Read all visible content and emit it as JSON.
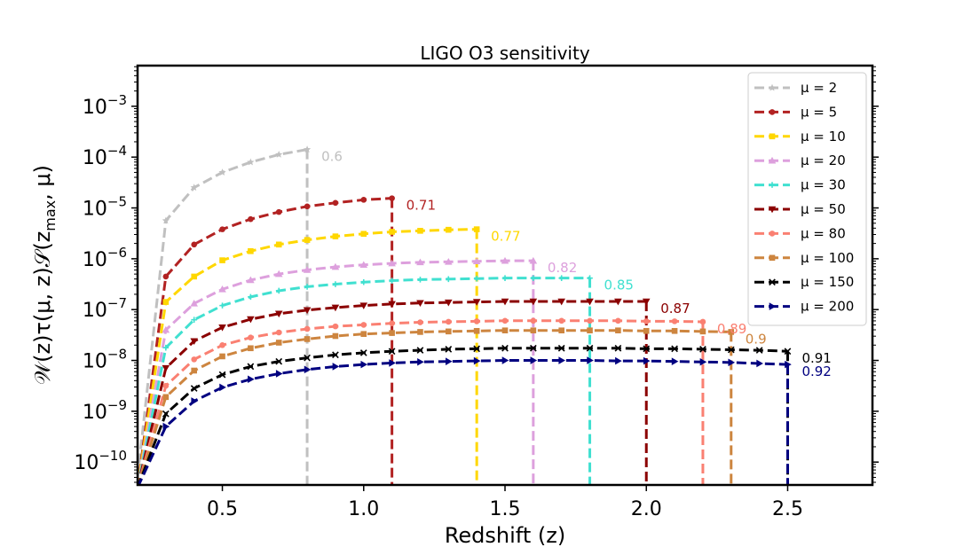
{
  "chart_data": {
    "type": "line",
    "title": "LIGO O3 sensitivity",
    "xlabel": "Redshift (z)",
    "ylabel_parts": {
      "a": "𝒲(z)τ(μ, z)𝒮(z",
      "b": "max",
      "c": ", μ)"
    },
    "xlim": [
      0.2,
      2.8
    ],
    "ylim": [
      -10.45,
      -2.2
    ],
    "yscale": "log",
    "x_ticks": [
      {
        "v": 0.5,
        "label": "0.5"
      },
      {
        "v": 1.0,
        "label": "1.0"
      },
      {
        "v": 1.5,
        "label": "1.5"
      },
      {
        "v": 2.0,
        "label": "2.0"
      },
      {
        "v": 2.5,
        "label": "2.5"
      }
    ],
    "y_ticks": [
      {
        "v": -10,
        "base": "10",
        "exp": "−10"
      },
      {
        "v": -9,
        "base": "10",
        "exp": "−9"
      },
      {
        "v": -8,
        "base": "10",
        "exp": "−8"
      },
      {
        "v": -7,
        "base": "10",
        "exp": "−7"
      },
      {
        "v": -6,
        "base": "10",
        "exp": "−6"
      },
      {
        "v": -5,
        "base": "10",
        "exp": "−5"
      },
      {
        "v": -4,
        "base": "10",
        "exp": "−4"
      },
      {
        "v": -3,
        "base": "10",
        "exp": "−3"
      }
    ],
    "legend_position": "top-right",
    "series": [
      {
        "name": "μ = 2",
        "mu": "2",
        "color": "#c0c0c0",
        "marker": "star",
        "zmax": 0.8,
        "end_label": "0.6",
        "x": [
          0.2,
          0.3,
          0.4,
          0.5,
          0.6,
          0.7,
          0.8
        ],
        "log_y": [
          -10.3,
          -5.25,
          -4.6,
          -4.3,
          -4.1,
          -3.95,
          -3.85
        ]
      },
      {
        "name": "μ = 5",
        "mu": "5",
        "color": "#b22222",
        "marker": "circle",
        "zmax": 1.1,
        "end_label": "0.71",
        "x": [
          0.2,
          0.3,
          0.4,
          0.5,
          0.6,
          0.7,
          0.8,
          0.9,
          1.0,
          1.1
        ],
        "log_y": [
          -10.5,
          -6.35,
          -5.72,
          -5.42,
          -5.22,
          -5.08,
          -4.97,
          -4.9,
          -4.84,
          -4.81
        ]
      },
      {
        "name": "μ = 10",
        "mu": "10",
        "color": "#ffd700",
        "marker": "square",
        "zmax": 1.4,
        "end_label": "0.77",
        "x": [
          0.2,
          0.3,
          0.4,
          0.5,
          0.6,
          0.7,
          0.8,
          0.9,
          1.0,
          1.1,
          1.2,
          1.3,
          1.4
        ],
        "log_y": [
          -10.5,
          -6.85,
          -6.35,
          -6.03,
          -5.85,
          -5.72,
          -5.63,
          -5.56,
          -5.51,
          -5.47,
          -5.45,
          -5.43,
          -5.42
        ]
      },
      {
        "name": "μ = 20",
        "mu": "20",
        "color": "#dda0dd",
        "marker": "triangle-up",
        "zmax": 1.6,
        "end_label": "0.82",
        "x": [
          0.2,
          0.3,
          0.4,
          0.5,
          0.6,
          0.7,
          0.8,
          0.9,
          1.0,
          1.1,
          1.2,
          1.3,
          1.4,
          1.5,
          1.6
        ],
        "log_y": [
          -10.5,
          -7.4,
          -6.88,
          -6.6,
          -6.42,
          -6.3,
          -6.22,
          -6.16,
          -6.12,
          -6.09,
          -6.07,
          -6.06,
          -6.05,
          -6.04,
          -6.04
        ]
      },
      {
        "name": "μ = 30",
        "mu": "30",
        "color": "#40e0d0",
        "marker": "plus",
        "zmax": 1.8,
        "end_label": "0.85",
        "x": [
          0.2,
          0.3,
          0.4,
          0.5,
          0.6,
          0.7,
          0.8,
          0.9,
          1.0,
          1.1,
          1.2,
          1.3,
          1.4,
          1.5,
          1.6,
          1.7,
          1.8
        ],
        "log_y": [
          -10.5,
          -7.75,
          -7.2,
          -6.92,
          -6.75,
          -6.63,
          -6.55,
          -6.5,
          -6.46,
          -6.43,
          -6.41,
          -6.4,
          -6.39,
          -6.38,
          -6.38,
          -6.38,
          -6.38
        ]
      },
      {
        "name": "μ = 50",
        "mu": "50",
        "color": "#8b0000",
        "marker": "triangle-down",
        "zmax": 2.0,
        "end_label": "0.87",
        "x": [
          0.2,
          0.3,
          0.4,
          0.5,
          0.6,
          0.7,
          0.8,
          0.9,
          1.0,
          1.1,
          1.2,
          1.3,
          1.4,
          1.5,
          1.6,
          1.7,
          1.8,
          1.9,
          2.0
        ],
        "log_y": [
          -10.5,
          -8.15,
          -7.62,
          -7.35,
          -7.19,
          -7.08,
          -7.01,
          -6.96,
          -6.92,
          -6.89,
          -6.87,
          -6.86,
          -6.85,
          -6.84,
          -6.84,
          -6.84,
          -6.84,
          -6.84,
          -6.84
        ]
      },
      {
        "name": "μ = 80",
        "mu": "80",
        "color": "#fa8072",
        "marker": "circle",
        "zmax": 2.2,
        "end_label": "0.89",
        "x": [
          0.2,
          0.3,
          0.4,
          0.5,
          0.6,
          0.7,
          0.8,
          0.9,
          1.0,
          1.1,
          1.2,
          1.3,
          1.4,
          1.5,
          1.6,
          1.7,
          1.8,
          1.9,
          2.0,
          2.1,
          2.2
        ],
        "log_y": [
          -10.5,
          -8.5,
          -7.98,
          -7.7,
          -7.55,
          -7.45,
          -7.38,
          -7.33,
          -7.3,
          -7.27,
          -7.25,
          -7.24,
          -7.23,
          -7.22,
          -7.22,
          -7.22,
          -7.22,
          -7.22,
          -7.23,
          -7.23,
          -7.24
        ]
      },
      {
        "name": "μ = 100",
        "mu": "100",
        "color": "#cd853f",
        "marker": "square",
        "zmax": 2.3,
        "end_label": "0.9",
        "x": [
          0.2,
          0.3,
          0.4,
          0.5,
          0.6,
          0.7,
          0.8,
          0.9,
          1.0,
          1.1,
          1.2,
          1.3,
          1.4,
          1.5,
          1.6,
          1.7,
          1.8,
          1.9,
          2.0,
          2.1,
          2.2,
          2.3
        ],
        "log_y": [
          -10.5,
          -8.72,
          -8.2,
          -7.92,
          -7.76,
          -7.65,
          -7.58,
          -7.52,
          -7.48,
          -7.46,
          -7.44,
          -7.43,
          -7.42,
          -7.41,
          -7.41,
          -7.41,
          -7.41,
          -7.41,
          -7.42,
          -7.42,
          -7.43,
          -7.44
        ]
      },
      {
        "name": "μ = 150",
        "mu": "150",
        "color": "#000000",
        "marker": "x",
        "zmax": 2.5,
        "end_label": "0.91",
        "x": [
          0.2,
          0.3,
          0.4,
          0.5,
          0.6,
          0.7,
          0.8,
          0.9,
          1.0,
          1.1,
          1.2,
          1.3,
          1.4,
          1.5,
          1.6,
          1.7,
          1.8,
          1.9,
          2.0,
          2.1,
          2.2,
          2.3,
          2.4,
          2.5
        ],
        "log_y": [
          -10.5,
          -9.05,
          -8.55,
          -8.28,
          -8.12,
          -8.02,
          -7.95,
          -7.89,
          -7.85,
          -7.82,
          -7.8,
          -7.78,
          -7.77,
          -7.76,
          -7.76,
          -7.76,
          -7.76,
          -7.76,
          -7.77,
          -7.77,
          -7.78,
          -7.79,
          -7.8,
          -7.82
        ]
      },
      {
        "name": "μ = 200",
        "mu": "200",
        "color": "#000080",
        "marker": "triangle-right",
        "zmax": 2.5,
        "end_label": "0.92",
        "x": [
          0.2,
          0.3,
          0.4,
          0.5,
          0.6,
          0.7,
          0.8,
          0.9,
          1.0,
          1.1,
          1.2,
          1.3,
          1.4,
          1.5,
          1.6,
          1.7,
          1.8,
          1.9,
          2.0,
          2.1,
          2.2,
          2.3,
          2.4,
          2.5
        ],
        "log_y": [
          -10.5,
          -9.3,
          -8.8,
          -8.53,
          -8.37,
          -8.26,
          -8.18,
          -8.12,
          -8.08,
          -8.05,
          -8.03,
          -8.02,
          -8.01,
          -8.0,
          -8.0,
          -8.0,
          -8.0,
          -8.01,
          -8.01,
          -8.02,
          -8.03,
          -8.04,
          -8.06,
          -8.08
        ]
      }
    ]
  }
}
